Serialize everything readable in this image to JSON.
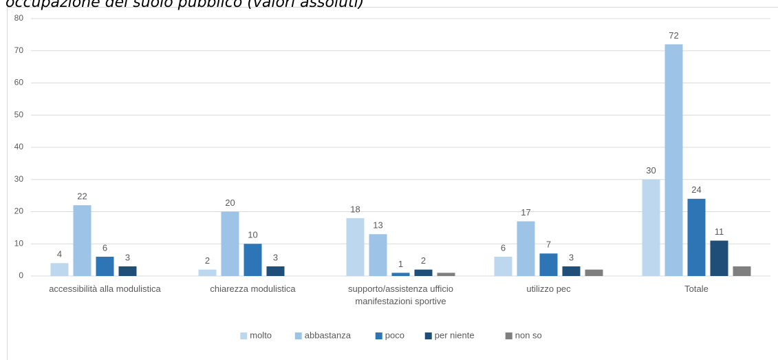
{
  "chart_data": {
    "type": "bar",
    "title": "occupazione del suolo pubblico (valori assoluti)",
    "categories": [
      "accessibilità alla modulistica",
      "chiarezza modulistica",
      "supporto/assistenza ufficio manifestazioni sportive",
      "utilizzo pec",
      "Totale"
    ],
    "series": [
      {
        "name": "molto",
        "color": "#bdd7ee",
        "values": [
          4,
          2,
          18,
          6,
          30
        ]
      },
      {
        "name": "abbastanza",
        "color": "#9dc3e6",
        "values": [
          22,
          20,
          13,
          17,
          72
        ]
      },
      {
        "name": "poco",
        "color": "#2e75b6",
        "values": [
          6,
          10,
          1,
          7,
          24
        ]
      },
      {
        "name": "per niente",
        "color": "#1f4e79",
        "values": [
          3,
          3,
          2,
          3,
          11
        ]
      },
      {
        "name": "non so",
        "color": "#7f7f7f",
        "values": [
          null,
          null,
          1,
          2,
          3
        ],
        "data_labels": false
      }
    ],
    "ylim": [
      0,
      80
    ],
    "yticks": [
      0,
      10,
      20,
      30,
      40,
      50,
      60,
      70,
      80
    ],
    "grid": true,
    "legend": "bottom"
  }
}
